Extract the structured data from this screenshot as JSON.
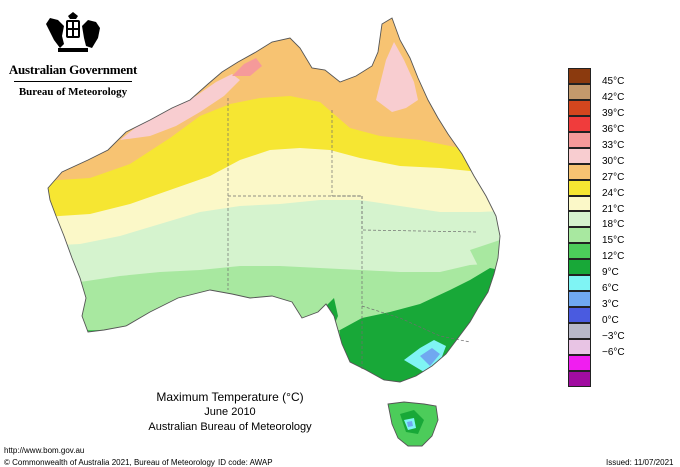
{
  "header": {
    "government": "Australian Government",
    "bureau": "Bureau of Meteorology"
  },
  "map": {
    "title": "Maximum Temperature (°C)",
    "period": "June 2010",
    "source": "Australian Bureau of Meteorology"
  },
  "legend": [
    {
      "label": "45°C",
      "color": "#8b3a0e"
    },
    {
      "label": "42°C",
      "color": "#c49a6c"
    },
    {
      "label": "39°C",
      "color": "#d2461e"
    },
    {
      "label": "36°C",
      "color": "#f03c3c"
    },
    {
      "label": "33°C",
      "color": "#f59a9a"
    },
    {
      "label": "30°C",
      "color": "#f8cdd0"
    },
    {
      "label": "27°C",
      "color": "#f7c372"
    },
    {
      "label": "24°C",
      "color": "#f6e632"
    },
    {
      "label": "21°C",
      "color": "#fbf8c8"
    },
    {
      "label": "18°C",
      "color": "#d5f3ce"
    },
    {
      "label": "15°C",
      "color": "#a8e8a0"
    },
    {
      "label": "12°C",
      "color": "#4ccc5a"
    },
    {
      "label": "9°C",
      "color": "#18a838"
    },
    {
      "label": "6°C",
      "color": "#7ff4f4"
    },
    {
      "label": "3°C",
      "color": "#70a8f0"
    },
    {
      "label": "0°C",
      "color": "#4a5be0"
    },
    {
      "label": "−3°C",
      "color": "#b8b8c8"
    },
    {
      "label": "−6°C",
      "color": "#e8c4e4"
    },
    {
      "label": "",
      "color": "#f01ef0"
    },
    {
      "label": "",
      "color": "#a00ca0"
    }
  ],
  "footer": {
    "url": "http://www.bom.gov.au",
    "copyright": "© Commonwealth of Australia 2021, Bureau of Meteorology",
    "id_code": "ID code: AWAP",
    "issued": "Issued: 11/07/2021"
  }
}
